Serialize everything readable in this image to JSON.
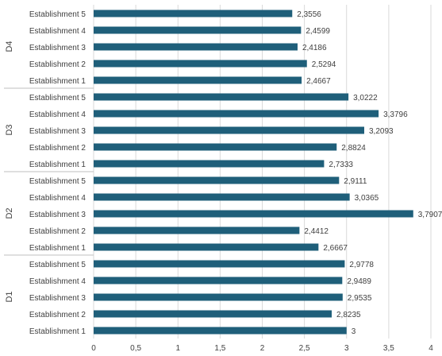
{
  "colors": {
    "bar": "#1F5F7A",
    "grid": "#d9d9d9",
    "separator": "#bfbfbf"
  },
  "chart_data": {
    "type": "bar",
    "orientation": "horizontal",
    "title": "",
    "xlabel": "",
    "ylabel": "",
    "xlim": [
      0,
      4
    ],
    "grid": "vertical major gridlines",
    "legend": "none",
    "x_ticks": [
      "0",
      "0,5",
      "1",
      "1,5",
      "2",
      "2,5",
      "3",
      "3,5",
      "4"
    ],
    "groups": [
      {
        "name": "D4",
        "categories": [
          "Establishment 5",
          "Establishment 4",
          "Establishment 3",
          "Establishment 2",
          "Establishment 1"
        ],
        "values": [
          2.3556,
          2.4599,
          2.4186,
          2.5294,
          2.4667
        ],
        "labels": [
          "2,3556",
          "2,4599",
          "2,4186",
          "2,5294",
          "2,4667"
        ]
      },
      {
        "name": "D3",
        "categories": [
          "Establishment 5",
          "Establishment 4",
          "Establishment 3",
          "Establishment 2",
          "Establishment 1"
        ],
        "values": [
          3.0222,
          3.3796,
          3.2093,
          2.8824,
          2.7333
        ],
        "labels": [
          "3,0222",
          "3,3796",
          "3,2093",
          "2,8824",
          "2,7333"
        ]
      },
      {
        "name": "D2",
        "categories": [
          "Establishment 5",
          "Establishment 4",
          "Establishment 3",
          "Establishment 2",
          "Establishment 1"
        ],
        "values": [
          2.9111,
          3.0365,
          3.7907,
          2.4412,
          2.6667
        ],
        "labels": [
          "2,9111",
          "3,0365",
          "3,7907",
          "2,4412",
          "2,6667"
        ]
      },
      {
        "name": "D1",
        "categories": [
          "Establishment 5",
          "Establishment 4",
          "Establishment 3",
          "Establishment 2",
          "Establishment 1"
        ],
        "values": [
          2.9778,
          2.9489,
          2.9535,
          2.8235,
          3
        ],
        "labels": [
          "2,9778",
          "2,9489",
          "2,9535",
          "2,8235",
          "3"
        ]
      }
    ]
  }
}
